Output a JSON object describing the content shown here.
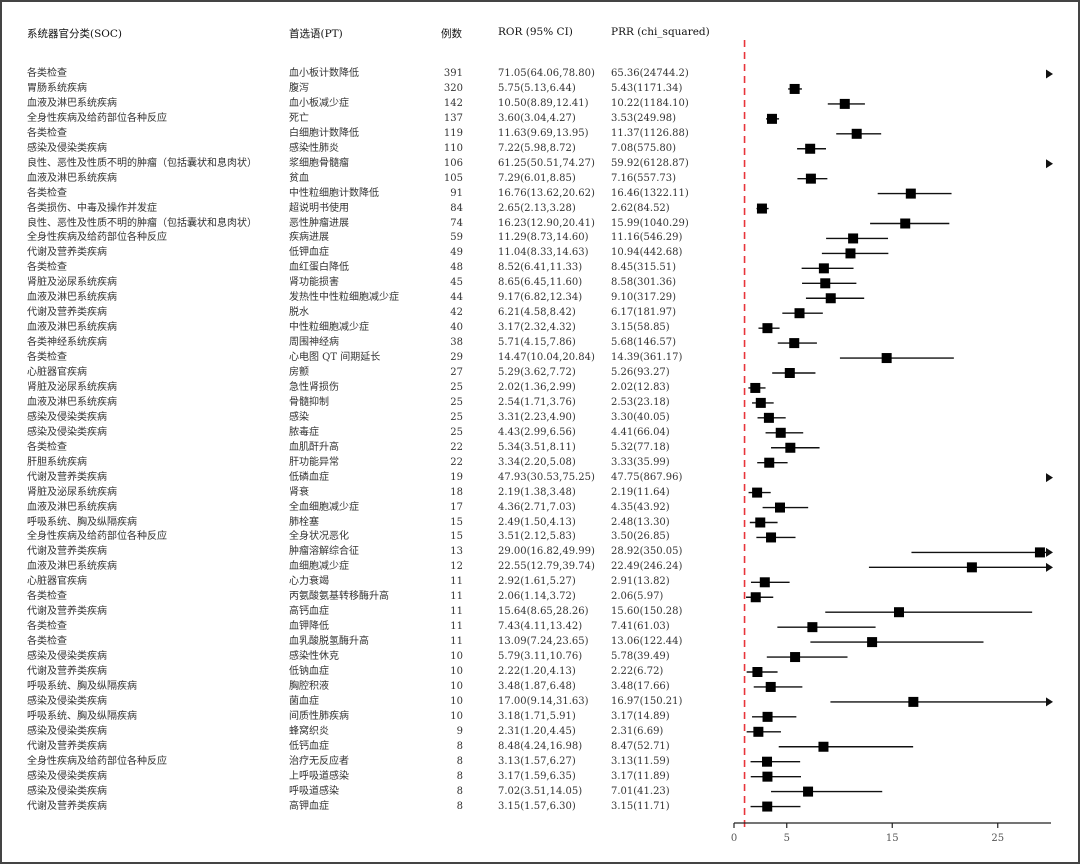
{
  "headers": {
    "soc": "系统器官分类(SOC)",
    "pt": "首选语(PT)",
    "n": "例数",
    "ror": "ROR (95% CI)",
    "prr": "PRR (chi_squared)"
  },
  "rows": [
    {
      "soc": "各类检查",
      "pt": "血小板计数降低",
      "n": "391",
      "ror": "71.05(64.06,78.80)",
      "prr": "65.36(24744.2)",
      "est": 71.05,
      "lo": 64.06,
      "hi": 78.8
    },
    {
      "soc": "胃肠系统疾病",
      "pt": "腹泻",
      "n": "320",
      "ror": "5.75(5.13,6.44)",
      "prr": "5.43(1171.34)",
      "est": 5.75,
      "lo": 5.13,
      "hi": 6.44
    },
    {
      "soc": "血液及淋巴系统疾病",
      "pt": "血小板减少症",
      "n": "142",
      "ror": "10.50(8.89,12.41)",
      "prr": "10.22(1184.10)",
      "est": 10.5,
      "lo": 8.89,
      "hi": 12.41
    },
    {
      "soc": "全身性疾病及给药部位各种反应",
      "pt": "死亡",
      "n": "137",
      "ror": "3.60(3.04,4.27)",
      "prr": "3.53(249.98)",
      "est": 3.6,
      "lo": 3.04,
      "hi": 4.27
    },
    {
      "soc": "各类检查",
      "pt": "白细胞计数降低",
      "n": "119",
      "ror": "11.63(9.69,13.95)",
      "prr": "11.37(1126.88)",
      "est": 11.63,
      "lo": 9.69,
      "hi": 13.95
    },
    {
      "soc": "感染及侵染类疾病",
      "pt": "感染性肺炎",
      "n": "110",
      "ror": "7.22(5.98,8.72)",
      "prr": "7.08(575.80)",
      "est": 7.22,
      "lo": 5.98,
      "hi": 8.72
    },
    {
      "soc": "良性、恶性及性质不明的肿瘤（包括囊状和息肉状）",
      "pt": "浆细胞骨髓瘤",
      "n": "106",
      "ror": "61.25(50.51,74.27)",
      "prr": "59.92(6128.87)",
      "est": 61.25,
      "lo": 50.51,
      "hi": 74.27
    },
    {
      "soc": "血液及淋巴系统疾病",
      "pt": "贫血",
      "n": "105",
      "ror": "7.29(6.01,8.85)",
      "prr": "7.16(557.73)",
      "est": 7.29,
      "lo": 6.01,
      "hi": 8.85
    },
    {
      "soc": "各类检查",
      "pt": "中性粒细胞计数降低",
      "n": "91",
      "ror": "16.76(13.62,20.62)",
      "prr": "16.46(1322.11)",
      "est": 16.76,
      "lo": 13.62,
      "hi": 20.62
    },
    {
      "soc": "各类损伤、中毒及操作并发症",
      "pt": "超说明书使用",
      "n": "84",
      "ror": "2.65(2.13,3.28)",
      "prr": "2.62(84.52)",
      "est": 2.65,
      "lo": 2.13,
      "hi": 3.28
    },
    {
      "soc": "良性、恶性及性质不明的肿瘤（包括囊状和息肉状）",
      "pt": "恶性肿瘤进展",
      "n": "74",
      "ror": "16.23(12.90,20.41)",
      "prr": "15.99(1040.29)",
      "est": 16.23,
      "lo": 12.9,
      "hi": 20.41
    },
    {
      "soc": "全身性疾病及给药部位各种反应",
      "pt": "疾病进展",
      "n": "59",
      "ror": "11.29(8.73,14.60)",
      "prr": "11.16(546.29)",
      "est": 11.29,
      "lo": 8.73,
      "hi": 14.6
    },
    {
      "soc": "代谢及营养类疾病",
      "pt": "低钾血症",
      "n": "49",
      "ror": "11.04(8.33,14.63)",
      "prr": "10.94(442.68)",
      "est": 11.04,
      "lo": 8.33,
      "hi": 14.63
    },
    {
      "soc": "各类检查",
      "pt": "血红蛋白降低",
      "n": "48",
      "ror": "8.52(6.41,11.33)",
      "prr": "8.45(315.51)",
      "est": 8.52,
      "lo": 6.41,
      "hi": 11.33
    },
    {
      "soc": "肾脏及泌尿系统疾病",
      "pt": "肾功能损害",
      "n": "45",
      "ror": "8.65(6.45,11.60)",
      "prr": "8.58(301.36)",
      "est": 8.65,
      "lo": 6.45,
      "hi": 11.6
    },
    {
      "soc": "血液及淋巴系统疾病",
      "pt": "发热性中性粒细胞减少症",
      "n": "44",
      "ror": "9.17(6.82,12.34)",
      "prr": "9.10(317.29)",
      "est": 9.17,
      "lo": 6.82,
      "hi": 12.34
    },
    {
      "soc": "代谢及营养类疾病",
      "pt": "脱水",
      "n": "42",
      "ror": "6.21(4.58,8.42)",
      "prr": "6.17(181.97)",
      "est": 6.21,
      "lo": 4.58,
      "hi": 8.42
    },
    {
      "soc": "血液及淋巴系统疾病",
      "pt": "中性粒细胞减少症",
      "n": "40",
      "ror": "3.17(2.32,4.32)",
      "prr": "3.15(58.85)",
      "est": 3.17,
      "lo": 2.32,
      "hi": 4.32
    },
    {
      "soc": "各类神经系统疾病",
      "pt": "周围神经病",
      "n": "38",
      "ror": "5.71(4.15,7.86)",
      "prr": "5.68(146.57)",
      "est": 5.71,
      "lo": 4.15,
      "hi": 7.86
    },
    {
      "soc": "各类检查",
      "pt": "心电图 QT 间期延长",
      "n": "29",
      "ror": "14.47(10.04,20.84)",
      "prr": "14.39(361.17)",
      "est": 14.47,
      "lo": 10.04,
      "hi": 20.84
    },
    {
      "soc": "心脏器官疾病",
      "pt": "房颤",
      "n": "27",
      "ror": "5.29(3.62,7.72)",
      "prr": "5.26(93.27)",
      "est": 5.29,
      "lo": 3.62,
      "hi": 7.72
    },
    {
      "soc": "肾脏及泌尿系统疾病",
      "pt": "急性肾损伤",
      "n": "25",
      "ror": "2.02(1.36,2.99)",
      "prr": "2.02(12.83)",
      "est": 2.02,
      "lo": 1.36,
      "hi": 2.99
    },
    {
      "soc": "血液及淋巴系统疾病",
      "pt": "骨髓抑制",
      "n": "25",
      "ror": "2.54(1.71,3.76)",
      "prr": "2.53(23.18)",
      "est": 2.54,
      "lo": 1.71,
      "hi": 3.76
    },
    {
      "soc": "感染及侵染类疾病",
      "pt": "感染",
      "n": "25",
      "ror": "3.31(2.23,4.90)",
      "prr": "3.30(40.05)",
      "est": 3.31,
      "lo": 2.23,
      "hi": 4.9
    },
    {
      "soc": "感染及侵染类疾病",
      "pt": "脓毒症",
      "n": "25",
      "ror": "4.43(2.99,6.56)",
      "prr": "4.41(66.04)",
      "est": 4.43,
      "lo": 2.99,
      "hi": 6.56
    },
    {
      "soc": "各类检查",
      "pt": "血肌酐升高",
      "n": "22",
      "ror": "5.34(3.51,8.11)",
      "prr": "5.32(77.18)",
      "est": 5.34,
      "lo": 3.51,
      "hi": 8.11
    },
    {
      "soc": "肝胆系统疾病",
      "pt": "肝功能异常",
      "n": "22",
      "ror": "3.34(2.20,5.08)",
      "prr": "3.33(35.99)",
      "est": 3.34,
      "lo": 2.2,
      "hi": 5.08
    },
    {
      "soc": "代谢及营养类疾病",
      "pt": "低磷血症",
      "n": "19",
      "ror": "47.93(30.53,75.25)",
      "prr": "47.75(867.96)",
      "est": 47.93,
      "lo": 30.53,
      "hi": 75.25
    },
    {
      "soc": "肾脏及泌尿系统疾病",
      "pt": "肾衰",
      "n": "18",
      "ror": "2.19(1.38,3.48)",
      "prr": "2.19(11.64)",
      "est": 2.19,
      "lo": 1.38,
      "hi": 3.48
    },
    {
      "soc": "血液及淋巴系统疾病",
      "pt": "全血细胞减少症",
      "n": "17",
      "ror": "4.36(2.71,7.03)",
      "prr": "4.35(43.92)",
      "est": 4.36,
      "lo": 2.71,
      "hi": 7.03
    },
    {
      "soc": "呼吸系统、胸及纵隔疾病",
      "pt": "肺栓塞",
      "n": "15",
      "ror": "2.49(1.50,4.13)",
      "prr": "2.48(13.30)",
      "est": 2.49,
      "lo": 1.5,
      "hi": 4.13
    },
    {
      "soc": "全身性疾病及给药部位各种反应",
      "pt": "全身状况恶化",
      "n": "15",
      "ror": "3.51(2.12,5.83)",
      "prr": "3.50(26.85)",
      "est": 3.51,
      "lo": 2.12,
      "hi": 5.83
    },
    {
      "soc": "代谢及营养类疾病",
      "pt": "肿瘤溶解综合征",
      "n": "13",
      "ror": "29.00(16.82,49.99)",
      "prr": "28.92(350.05)",
      "est": 29.0,
      "lo": 16.82,
      "hi": 49.99
    },
    {
      "soc": "血液及淋巴系统疾病",
      "pt": "血细胞减少症",
      "n": "12",
      "ror": "22.55(12.79,39.74)",
      "prr": "22.49(246.24)",
      "est": 22.55,
      "lo": 12.79,
      "hi": 39.74
    },
    {
      "soc": "心脏器官疾病",
      "pt": "心力衰竭",
      "n": "11",
      "ror": "2.92(1.61,5.27)",
      "prr": "2.91(13.82)",
      "est": 2.92,
      "lo": 1.61,
      "hi": 5.27
    },
    {
      "soc": "各类检查",
      "pt": "丙氨酸氨基转移酶升高",
      "n": "11",
      "ror": "2.06(1.14,3.72)",
      "prr": "2.06(5.97)",
      "est": 2.06,
      "lo": 1.14,
      "hi": 3.72
    },
    {
      "soc": "代谢及营养类疾病",
      "pt": "高钙血症",
      "n": "11",
      "ror": "15.64(8.65,28.26)",
      "prr": "15.60(150.28)",
      "est": 15.64,
      "lo": 8.65,
      "hi": 28.26
    },
    {
      "soc": "各类检查",
      "pt": "血钾降低",
      "n": "11",
      "ror": "7.43(4.11,13.42)",
      "prr": "7.41(61.03)",
      "est": 7.43,
      "lo": 4.11,
      "hi": 13.42
    },
    {
      "soc": "各类检查",
      "pt": "血乳酸脱氢酶升高",
      "n": "11",
      "ror": "13.09(7.24,23.65)",
      "prr": "13.06(122.44)",
      "est": 13.09,
      "lo": 7.24,
      "hi": 23.65
    },
    {
      "soc": "感染及侵染类疾病",
      "pt": "感染性休克",
      "n": "10",
      "ror": "5.79(3.11,10.76)",
      "prr": "5.78(39.49)",
      "est": 5.79,
      "lo": 3.11,
      "hi": 10.76
    },
    {
      "soc": "代谢及营养类疾病",
      "pt": "低钠血症",
      "n": "10",
      "ror": "2.22(1.20,4.13)",
      "prr": "2.22(6.72)",
      "est": 2.22,
      "lo": 1.2,
      "hi": 4.13
    },
    {
      "soc": "呼吸系统、胸及纵隔疾病",
      "pt": "胸腔积液",
      "n": "10",
      "ror": "3.48(1.87,6.48)",
      "prr": "3.48(17.66)",
      "est": 3.48,
      "lo": 1.87,
      "hi": 6.48
    },
    {
      "soc": "感染及侵染类疾病",
      "pt": "菌血症",
      "n": "10",
      "ror": "17.00(9.14,31.63)",
      "prr": "16.97(150.21)",
      "est": 17.0,
      "lo": 9.14,
      "hi": 31.63
    },
    {
      "soc": "呼吸系统、胸及纵隔疾病",
      "pt": "间质性肺疾病",
      "n": "10",
      "ror": "3.18(1.71,5.91)",
      "prr": "3.17(14.89)",
      "est": 3.18,
      "lo": 1.71,
      "hi": 5.91
    },
    {
      "soc": "感染及侵染类疾病",
      "pt": "蜂窝织炎",
      "n": "9",
      "ror": "2.31(1.20,4.45)",
      "prr": "2.31(6.69)",
      "est": 2.31,
      "lo": 1.2,
      "hi": 4.45
    },
    {
      "soc": "代谢及营养类疾病",
      "pt": "低钙血症",
      "n": "8",
      "ror": "8.48(4.24,16.98)",
      "prr": "8.47(52.71)",
      "est": 8.48,
      "lo": 4.24,
      "hi": 16.98
    },
    {
      "soc": "全身性疾病及给药部位各种反应",
      "pt": "治疗无反应者",
      "n": "8",
      "ror": "3.13(1.57,6.27)",
      "prr": "3.13(11.59)",
      "est": 3.13,
      "lo": 1.57,
      "hi": 6.27
    },
    {
      "soc": "感染及侵染类疾病",
      "pt": "上呼吸道感染",
      "n": "8",
      "ror": "3.17(1.59,6.35)",
      "prr": "3.17(11.89)",
      "est": 3.17,
      "lo": 1.59,
      "hi": 6.35
    },
    {
      "soc": "感染及侵染类疾病",
      "pt": "呼吸道感染",
      "n": "8",
      "ror": "7.02(3.51,14.05)",
      "prr": "7.01(41.23)",
      "est": 7.02,
      "lo": 3.51,
      "hi": 14.05
    },
    {
      "soc": "代谢及营养类疾病",
      "pt": "高钾血症",
      "n": "8",
      "ror": "3.15(1.57,6.30)",
      "prr": "3.15(11.71)",
      "est": 3.15,
      "lo": 1.57,
      "hi": 6.3
    }
  ],
  "axis": {
    "ticks": [
      {
        "value": 0,
        "label": "0"
      },
      {
        "value": 5,
        "label": "5"
      },
      {
        "value": 15,
        "label": "15"
      },
      {
        "value": 25,
        "label": "25"
      }
    ],
    "max": 30,
    "reference_line": 1,
    "reference_color": "#e8343a"
  },
  "chart_data": {
    "type": "forest",
    "title": "",
    "xlabel": "ROR (95% CI)",
    "ylabel": "",
    "xlim": [
      0,
      30
    ],
    "x_ticks": [
      0,
      5,
      15,
      25
    ],
    "reference_line": 1,
    "columns": [
      "系统器官分类(SOC)",
      "首选语(PT)",
      "例数",
      "ROR (95% CI)",
      "PRR (chi_squared)"
    ],
    "categories": [
      "血小板计数降低",
      "腹泻",
      "血小板减少症",
      "死亡",
      "白细胞计数降低",
      "感染性肺炎",
      "浆细胞骨髓瘤",
      "贫血",
      "中性粒细胞计数降低",
      "超说明书使用",
      "恶性肿瘤进展",
      "疾病进展",
      "低钾血症",
      "血红蛋白降低",
      "肾功能损害",
      "发热性中性粒细胞减少症",
      "脱水",
      "中性粒细胞减少症",
      "周围神经病",
      "心电图 QT 间期延长",
      "房颤",
      "急性肾损伤",
      "骨髓抑制",
      "感染",
      "脓毒症",
      "血肌酐升高",
      "肝功能异常",
      "低磷血症",
      "肾衰",
      "全血细胞减少症",
      "肺栓塞",
      "全身状况恶化",
      "肿瘤溶解综合征",
      "血细胞减少症",
      "心力衰竭",
      "丙氨酸氨基转移酶升高",
      "高钙血症",
      "血钾降低",
      "血乳酸脱氢酶升高",
      "感染性休克",
      "低钠血症",
      "胸腔积液",
      "菌血症",
      "间质性肺疾病",
      "蜂窝织炎",
      "低钙血症",
      "治疗无反应者",
      "上呼吸道感染",
      "呼吸道感染",
      "高钾血症"
    ],
    "series": [
      {
        "name": "ROR",
        "values": [
          71.05,
          5.75,
          10.5,
          3.6,
          11.63,
          7.22,
          61.25,
          7.29,
          16.76,
          2.65,
          16.23,
          11.29,
          11.04,
          8.52,
          8.65,
          9.17,
          6.21,
          3.17,
          5.71,
          14.47,
          5.29,
          2.02,
          2.54,
          3.31,
          4.43,
          5.34,
          3.34,
          47.93,
          2.19,
          4.36,
          2.49,
          3.51,
          29.0,
          22.55,
          2.92,
          2.06,
          15.64,
          7.43,
          13.09,
          5.79,
          2.22,
          3.48,
          17.0,
          3.18,
          2.31,
          8.48,
          3.13,
          3.17,
          7.02,
          3.15
        ]
      },
      {
        "name": "CI_lower",
        "values": [
          64.06,
          5.13,
          8.89,
          3.04,
          9.69,
          5.98,
          50.51,
          6.01,
          13.62,
          2.13,
          12.9,
          8.73,
          8.33,
          6.41,
          6.45,
          6.82,
          4.58,
          2.32,
          4.15,
          10.04,
          3.62,
          1.36,
          1.71,
          2.23,
          2.99,
          3.51,
          2.2,
          30.53,
          1.38,
          2.71,
          1.5,
          2.12,
          16.82,
          12.79,
          1.61,
          1.14,
          8.65,
          4.11,
          7.24,
          3.11,
          1.2,
          1.87,
          9.14,
          1.71,
          1.2,
          4.24,
          1.57,
          1.59,
          3.51,
          1.57
        ]
      },
      {
        "name": "CI_upper",
        "values": [
          78.8,
          6.44,
          12.41,
          4.27,
          13.95,
          8.72,
          74.27,
          8.85,
          20.62,
          3.28,
          20.41,
          14.6,
          14.63,
          11.33,
          11.6,
          12.34,
          8.42,
          4.32,
          7.86,
          20.84,
          7.72,
          2.99,
          3.76,
          4.9,
          6.56,
          8.11,
          5.08,
          75.25,
          3.48,
          7.03,
          4.13,
          5.83,
          49.99,
          39.74,
          5.27,
          3.72,
          28.26,
          13.42,
          23.65,
          10.76,
          4.13,
          6.48,
          31.63,
          5.91,
          4.45,
          16.98,
          6.27,
          6.35,
          14.05,
          6.3
        ]
      },
      {
        "name": "PRR",
        "values": [
          65.36,
          5.43,
          10.22,
          3.53,
          11.37,
          7.08,
          59.92,
          7.16,
          16.46,
          2.62,
          15.99,
          11.16,
          10.94,
          8.45,
          8.58,
          9.1,
          6.17,
          3.15,
          5.68,
          14.39,
          5.26,
          2.02,
          2.53,
          3.3,
          4.41,
          5.32,
          3.33,
          47.75,
          2.19,
          4.35,
          2.48,
          3.5,
          28.92,
          22.49,
          2.91,
          2.06,
          15.6,
          7.41,
          13.06,
          5.78,
          2.22,
          3.48,
          16.97,
          3.17,
          2.31,
          8.47,
          3.13,
          3.17,
          7.01,
          3.15
        ]
      },
      {
        "name": "chi_squared",
        "values": [
          24744.2,
          1171.34,
          1184.1,
          249.98,
          1126.88,
          575.8,
          6128.87,
          557.73,
          1322.11,
          84.52,
          1040.29,
          546.29,
          442.68,
          315.51,
          301.36,
          317.29,
          181.97,
          58.85,
          146.57,
          361.17,
          93.27,
          12.83,
          23.18,
          40.05,
          66.04,
          77.18,
          35.99,
          867.96,
          11.64,
          43.92,
          13.3,
          26.85,
          350.05,
          246.24,
          13.82,
          5.97,
          150.28,
          61.03,
          122.44,
          39.49,
          6.72,
          17.66,
          150.21,
          14.89,
          6.69,
          52.71,
          11.59,
          11.89,
          41.23,
          11.71
        ]
      },
      {
        "name": "N",
        "values": [
          391,
          320,
          142,
          137,
          119,
          110,
          106,
          105,
          91,
          84,
          74,
          59,
          49,
          48,
          45,
          44,
          42,
          40,
          38,
          29,
          27,
          25,
          25,
          25,
          25,
          22,
          22,
          19,
          18,
          17,
          15,
          15,
          13,
          12,
          11,
          11,
          11,
          11,
          11,
          10,
          10,
          10,
          10,
          10,
          9,
          8,
          8,
          8,
          8,
          8
        ]
      }
    ]
  }
}
